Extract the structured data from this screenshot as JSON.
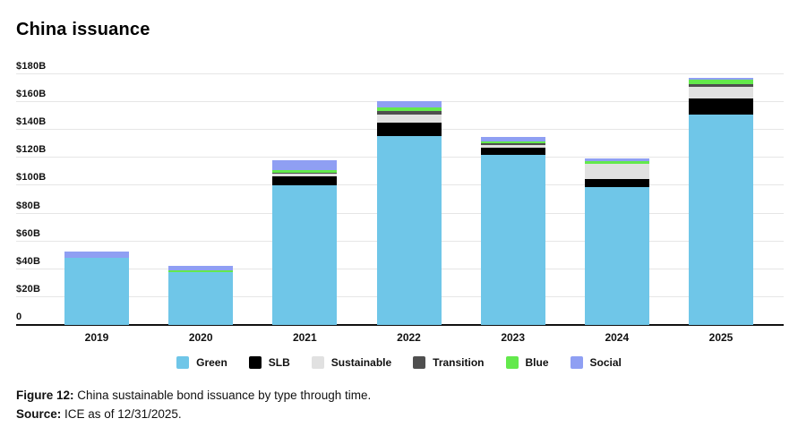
{
  "page": {
    "title": "China issuance",
    "footer": {
      "figure_label": "Figure 12:",
      "figure_caption": " China sustainable bond issuance by type through time.",
      "source_label": "Source:",
      "source_text": " ICE as of 12/31/2025."
    }
  },
  "chart_data": {
    "type": "bar",
    "stacked": true,
    "title": "China issuance",
    "xlabel": "",
    "ylabel": "",
    "ylim": [
      0,
      180
    ],
    "ytick_step": 20,
    "grid": true,
    "legend_position": "bottom",
    "categories": [
      "2019",
      "2020",
      "2021",
      "2022",
      "2023",
      "2024",
      "2025"
    ],
    "yticks": [
      {
        "value": 0,
        "label": "0"
      },
      {
        "value": 20,
        "label": "$20B"
      },
      {
        "value": 40,
        "label": "$40B"
      },
      {
        "value": 60,
        "label": "$60B"
      },
      {
        "value": 80,
        "label": "$80B"
      },
      {
        "value": 100,
        "label": "$100B"
      },
      {
        "value": 120,
        "label": "$120B"
      },
      {
        "value": 140,
        "label": "$140B"
      },
      {
        "value": 160,
        "label": "$160B"
      },
      {
        "value": 180,
        "label": "$180B"
      }
    ],
    "series": [
      {
        "name": "Green",
        "color": "#6FC6E8",
        "values": [
          48,
          38,
          100,
          135.5,
          122,
          99,
          151
        ]
      },
      {
        "name": "SLB",
        "color": "#000000",
        "values": [
          0,
          0,
          7,
          9.5,
          5.5,
          5.5,
          11.5
        ]
      },
      {
        "name": "Sustainable",
        "color": "#E1E1E1",
        "values": [
          0,
          0,
          1.5,
          6,
          1.5,
          11.5,
          8.5
        ]
      },
      {
        "name": "Transition",
        "color": "#4F4F4F",
        "values": [
          0,
          0,
          1,
          2.5,
          1.5,
          0,
          2
        ]
      },
      {
        "name": "Blue",
        "color": "#63E94C",
        "values": [
          0,
          1,
          2,
          2.5,
          1.5,
          1.5,
          3
        ]
      },
      {
        "name": "Social",
        "color": "#8F9FF3",
        "values": [
          5,
          3.5,
          7,
          4.5,
          3,
          2,
          1.5
        ]
      }
    ],
    "totals": [
      53,
      42.5,
      118.5,
      160.5,
      135,
      119.5,
      177.5
    ]
  }
}
